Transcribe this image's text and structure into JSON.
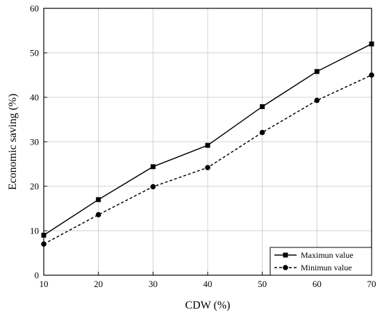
{
  "chart_data": {
    "type": "line",
    "xlabel": "CDW (%)",
    "ylabel": "Economic saving (%)",
    "xlim": [
      10,
      70
    ],
    "ylim": [
      0,
      60
    ],
    "xticks": [
      10,
      20,
      30,
      40,
      50,
      60,
      70
    ],
    "yticks": [
      0,
      10,
      20,
      30,
      40,
      50,
      60
    ],
    "grid": true,
    "legend_position": "bottom-right",
    "x": [
      10,
      20,
      30,
      40,
      50,
      60,
      70
    ],
    "series": [
      {
        "name": "Maximun value",
        "values": [
          9.0,
          17.0,
          24.4,
          29.2,
          37.9,
          45.8,
          52.0
        ],
        "line_style": "solid",
        "marker": "square",
        "color": "#000000"
      },
      {
        "name": "Minimun value",
        "values": [
          7.0,
          13.6,
          19.9,
          24.2,
          32.1,
          39.3,
          45.0
        ],
        "line_style": "dashed",
        "marker": "circle",
        "color": "#000000"
      }
    ]
  }
}
